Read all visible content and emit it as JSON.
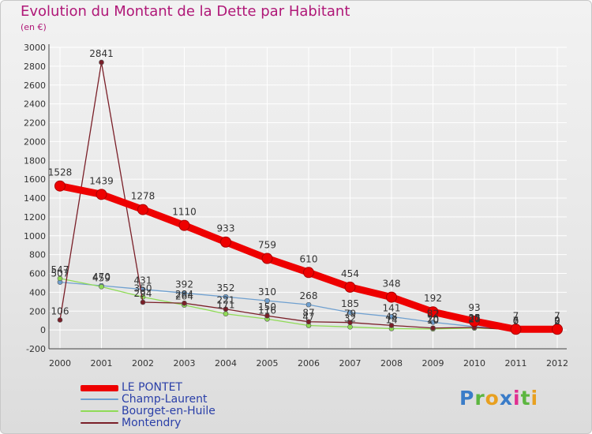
{
  "header": {
    "title": "Evolution du Montant de la Dette par Habitant",
    "subtitle": "(en €)"
  },
  "logo": {
    "text": "Proxiti"
  },
  "chart_data": {
    "type": "line",
    "title": "Evolution du Montant de la Dette par Habitant",
    "ylabel": "(en €)",
    "xlabel": "",
    "ylim": [
      -200,
      3000
    ],
    "y_ticks": [
      -200,
      0,
      200,
      400,
      600,
      800,
      1000,
      1200,
      1400,
      1600,
      1800,
      2000,
      2200,
      2400,
      2600,
      2800,
      3000
    ],
    "categories": [
      "2000",
      "2001",
      "2002",
      "2003",
      "2004",
      "2005",
      "2006",
      "2007",
      "2008",
      "2009",
      "2010",
      "2011",
      "2012"
    ],
    "grid": true,
    "legend_position": "bottom-left",
    "series": [
      {
        "name": "Champ-Laurent",
        "color": "#6fa0d0",
        "values": [
          507,
          470,
          431,
          392,
          352,
          310,
          268,
          185,
          141,
          82,
          35,
          7,
          9
        ],
        "labels": [
          "507",
          "470",
          "431",
          "392",
          "352",
          "310",
          "268",
          "185",
          "141",
          "82",
          "35",
          "7",
          "9"
        ]
      },
      {
        "name": "Bourget-en-Huile",
        "color": "#8fdb56",
        "values": [
          547,
          459,
          350,
          264,
          171,
          116,
          47,
          32,
          14,
          10,
          20,
          6,
          2
        ],
        "labels": [
          "547",
          "459",
          "350",
          "264",
          "171",
          "116",
          "47",
          "32",
          "14",
          "10",
          "20",
          "6",
          "2"
        ]
      },
      {
        "name": "Montendry",
        "color": "#7a1f28",
        "values": [
          106,
          2841,
          294,
          284,
          221,
          150,
          87,
          79,
          48,
          20,
          27,
          0,
          0
        ],
        "labels": [
          "106",
          "2841",
          "294",
          "284",
          "221",
          "150",
          "87",
          "79",
          "48",
          "20",
          "27",
          "0",
          "0"
        ]
      },
      {
        "name": "LE PONTET",
        "color": "#ee0000",
        "values": [
          1528,
          1439,
          1278,
          1110,
          933,
          759,
          610,
          454,
          348,
          192,
          93,
          7,
          7
        ],
        "labels": [
          "1528",
          "1439",
          "1278",
          "1110",
          "933",
          "759",
          "610",
          "454",
          "348",
          "192",
          "93",
          "7",
          "7"
        ]
      }
    ]
  },
  "legend": {
    "items": [
      {
        "label": "LE PONTET",
        "color": "#ee0000"
      },
      {
        "label": "Champ-Laurent",
        "color": "#6fa0d0"
      },
      {
        "label": "Bourget-en-Huile",
        "color": "#8fdb56"
      },
      {
        "label": "Montendry",
        "color": "#7a1f28"
      }
    ]
  }
}
